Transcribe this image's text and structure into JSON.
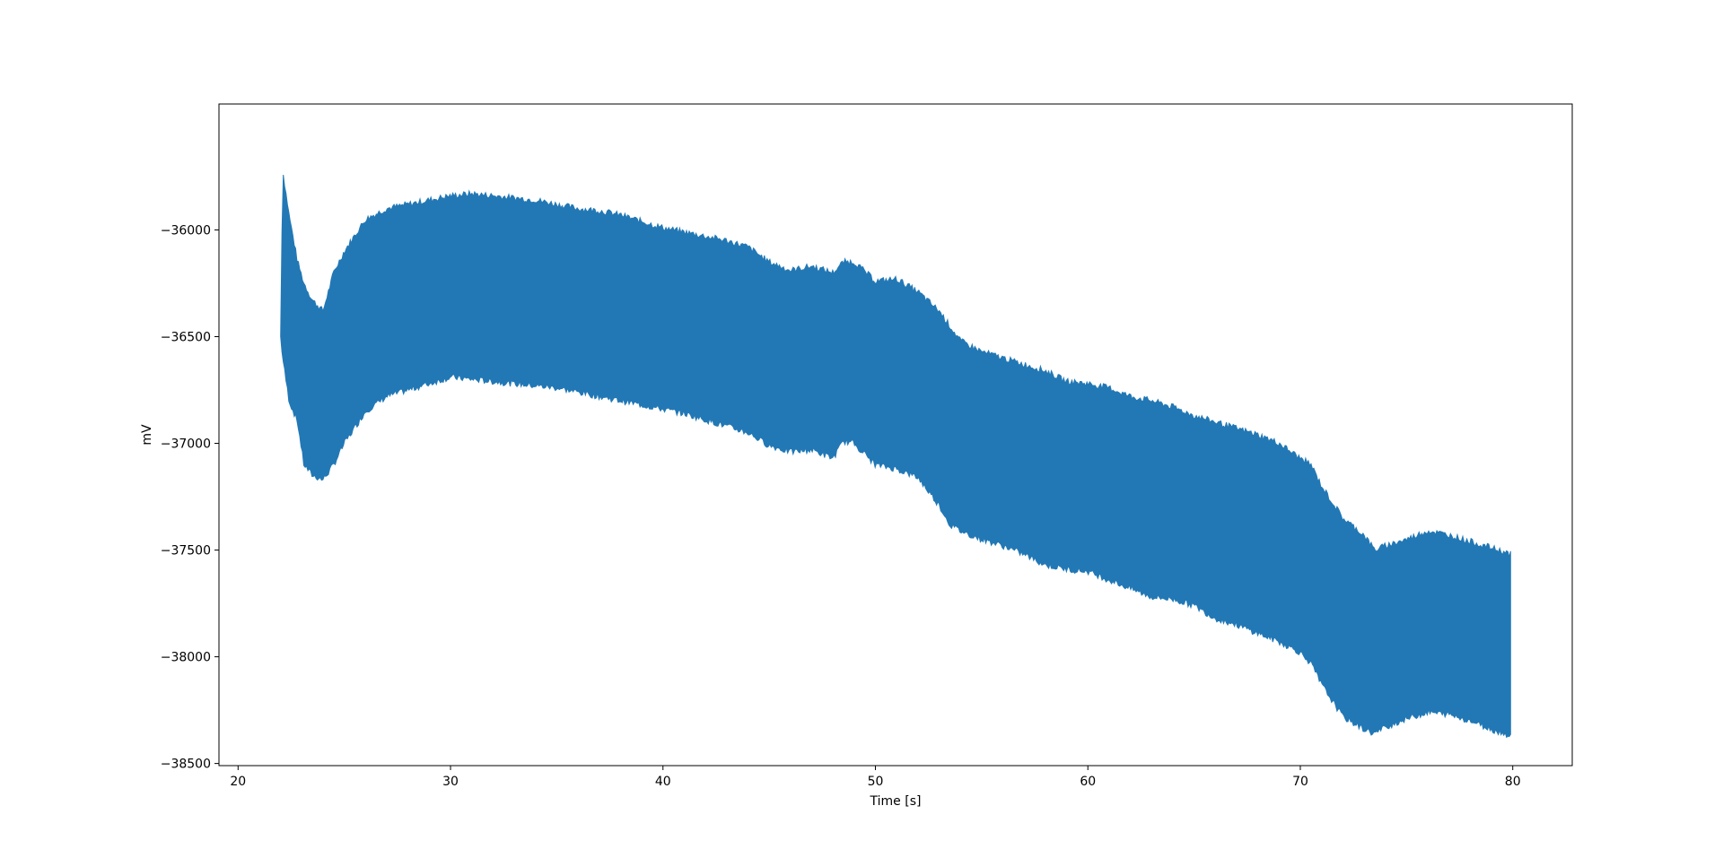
{
  "chart_data": {
    "type": "area",
    "title": "",
    "xlabel": "Time [s]",
    "ylabel": "mV",
    "xlim": [
      19.1,
      82.8
    ],
    "ylim": [
      -38510,
      -35410
    ],
    "xticks": [
      20,
      30,
      40,
      50,
      60,
      70,
      80
    ],
    "yticks": [
      -36000,
      -36500,
      -37000,
      -37500,
      -38000,
      -38500
    ],
    "xtick_labels": [
      "20",
      "30",
      "40",
      "50",
      "60",
      "70",
      "80"
    ],
    "ytick_labels": [
      "−36000",
      "−36500",
      "−37000",
      "−37500",
      "−38000",
      "−38500"
    ],
    "grid": false,
    "legend": "none",
    "series": [
      {
        "color": "#2278b5",
        "description_of_shape": "dense oscillating signal shown as filled envelope",
        "x": [
          22.0,
          22.1,
          22.4,
          22.8,
          23.1,
          23.5,
          24.0,
          24.5,
          25.0,
          26.0,
          27.0,
          28.0,
          29.0,
          30.0,
          31.0,
          32.0,
          33.0,
          34.0,
          35.0,
          36.0,
          37.0,
          38.0,
          39.0,
          40.0,
          41.0,
          42.0,
          43.0,
          44.0,
          45.0,
          46.0,
          47.0,
          48.0,
          48.5,
          49.0,
          50.0,
          51.0,
          52.0,
          53.0,
          53.5,
          54.0,
          55.0,
          56.0,
          57.0,
          58.0,
          59.0,
          60.0,
          61.0,
          62.0,
          63.0,
          64.0,
          65.0,
          66.0,
          67.0,
          68.0,
          69.0,
          70.0,
          70.5,
          71.0,
          72.0,
          73.0,
          73.5,
          74.0,
          75.0,
          76.0,
          77.0,
          78.0,
          79.0,
          79.9
        ],
        "upper": [
          -36500,
          -35720,
          -35930,
          -36150,
          -36250,
          -36330,
          -36380,
          -36200,
          -36100,
          -35950,
          -35900,
          -35880,
          -35860,
          -35840,
          -35830,
          -35840,
          -35850,
          -35860,
          -35880,
          -35900,
          -35910,
          -35930,
          -35960,
          -35990,
          -36010,
          -36030,
          -36050,
          -36080,
          -36150,
          -36190,
          -36170,
          -36200,
          -36150,
          -36150,
          -36240,
          -36230,
          -36290,
          -36380,
          -36450,
          -36520,
          -36570,
          -36600,
          -36630,
          -36660,
          -36710,
          -36720,
          -36740,
          -36780,
          -36800,
          -36830,
          -36870,
          -36900,
          -36930,
          -36960,
          -37000,
          -37070,
          -37100,
          -37200,
          -37350,
          -37430,
          -37500,
          -37480,
          -37450,
          -37410,
          -37430,
          -37460,
          -37490,
          -37520
        ],
        "lower": [
          -36500,
          -36600,
          -36800,
          -36900,
          -37100,
          -37150,
          -37170,
          -37100,
          -37000,
          -36850,
          -36780,
          -36750,
          -36720,
          -36690,
          -36700,
          -36710,
          -36720,
          -36730,
          -36740,
          -36760,
          -36780,
          -36800,
          -36820,
          -36840,
          -36860,
          -36890,
          -36920,
          -36950,
          -37010,
          -37040,
          -37030,
          -37070,
          -36990,
          -37000,
          -37100,
          -37120,
          -37160,
          -37290,
          -37380,
          -37410,
          -37450,
          -37480,
          -37520,
          -37570,
          -37590,
          -37600,
          -37640,
          -37680,
          -37720,
          -37730,
          -37760,
          -37820,
          -37850,
          -37890,
          -37930,
          -37980,
          -38030,
          -38130,
          -38280,
          -38340,
          -38360,
          -38330,
          -38290,
          -38260,
          -38270,
          -38300,
          -38340,
          -38370
        ]
      }
    ]
  }
}
